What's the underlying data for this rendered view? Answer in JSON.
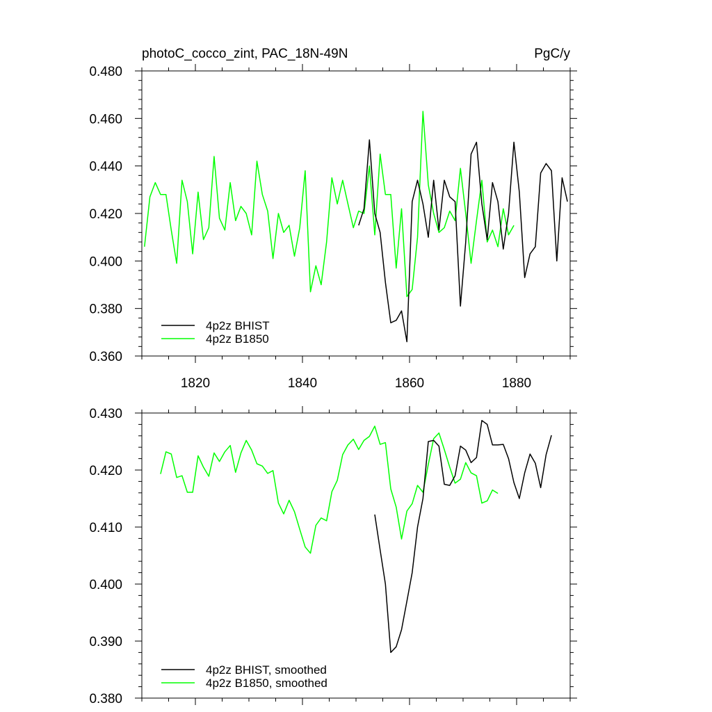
{
  "chart_data": [
    {
      "type": "line",
      "title": "photoC_cocco_zint, PAC_18N-49N",
      "units": "PgC/y",
      "xlabel": "",
      "ylabel": "",
      "xlim": [
        1810,
        1890
      ],
      "ylim": [
        0.36,
        0.48
      ],
      "x_ticks": [
        1820,
        1840,
        1860,
        1880
      ],
      "x_tick_labels": [
        "1820",
        "1840",
        "1860",
        "1880"
      ],
      "y_ticks": [
        0.36,
        0.38,
        0.4,
        0.42,
        0.44,
        0.46,
        0.48
      ],
      "y_tick_labels": [
        "0.360",
        "0.380",
        "0.400",
        "0.420",
        "0.440",
        "0.460",
        "0.480"
      ],
      "legend_position": "bottom-left",
      "series": [
        {
          "name": "4p2z BHIST",
          "color": "#000000",
          "x": [
            1850.5,
            1851.5,
            1852.5,
            1853.5,
            1854.5,
            1855.5,
            1856.5,
            1857.5,
            1858.5,
            1859.5,
            1860.5,
            1861.5,
            1862.5,
            1863.5,
            1864.5,
            1865.5,
            1866.5,
            1867.5,
            1868.5,
            1869.5,
            1870.5,
            1871.5,
            1872.5,
            1873.5,
            1874.5,
            1875.5,
            1876.5,
            1877.5,
            1878.5,
            1879.5,
            1880.5,
            1881.5,
            1882.5,
            1883.5,
            1884.5,
            1885.5,
            1886.5,
            1887.5,
            1888.5,
            1889.5
          ],
          "values": [
            0.415,
            0.422,
            0.451,
            0.42,
            0.412,
            0.391,
            0.374,
            0.375,
            0.379,
            0.366,
            0.425,
            0.434,
            0.424,
            0.41,
            0.434,
            0.413,
            0.434,
            0.427,
            0.425,
            0.381,
            0.408,
            0.445,
            0.45,
            0.424,
            0.409,
            0.433,
            0.425,
            0.405,
            0.42,
            0.45,
            0.429,
            0.393,
            0.403,
            0.406,
            0.437,
            0.441,
            0.438,
            0.4,
            0.435,
            0.425
          ]
        },
        {
          "name": "4p2z B1850",
          "color": "#00ff00",
          "x": [
            1810.5,
            1811.5,
            1812.5,
            1813.5,
            1814.5,
            1815.5,
            1816.5,
            1817.5,
            1818.5,
            1819.5,
            1820.5,
            1821.5,
            1822.5,
            1823.5,
            1824.5,
            1825.5,
            1826.5,
            1827.5,
            1828.5,
            1829.5,
            1830.5,
            1831.5,
            1832.5,
            1833.5,
            1834.5,
            1835.5,
            1836.5,
            1837.5,
            1838.5,
            1839.5,
            1840.5,
            1841.5,
            1842.5,
            1843.5,
            1844.5,
            1845.5,
            1846.5,
            1847.5,
            1848.5,
            1849.5,
            1850.5,
            1851.5,
            1852.5,
            1853.5,
            1854.5,
            1855.5,
            1856.5,
            1857.5,
            1858.5,
            1859.5,
            1860.5,
            1861.5,
            1862.5,
            1863.5,
            1864.5,
            1865.5,
            1866.5,
            1867.5,
            1868.5,
            1869.5,
            1870.5,
            1871.5,
            1872.5,
            1873.5,
            1874.5,
            1875.5,
            1876.5,
            1877.5,
            1878.5,
            1879.5
          ],
          "values": [
            0.406,
            0.427,
            0.433,
            0.428,
            0.428,
            0.413,
            0.399,
            0.434,
            0.425,
            0.403,
            0.429,
            0.409,
            0.414,
            0.444,
            0.418,
            0.413,
            0.433,
            0.417,
            0.423,
            0.42,
            0.411,
            0.442,
            0.428,
            0.421,
            0.401,
            0.42,
            0.412,
            0.415,
            0.402,
            0.414,
            0.438,
            0.387,
            0.398,
            0.39,
            0.408,
            0.435,
            0.424,
            0.434,
            0.424,
            0.414,
            0.421,
            0.42,
            0.44,
            0.411,
            0.445,
            0.428,
            0.428,
            0.397,
            0.422,
            0.385,
            0.388,
            0.41,
            0.463,
            0.432,
            0.42,
            0.412,
            0.414,
            0.421,
            0.417,
            0.439,
            0.42,
            0.399,
            0.417,
            0.434,
            0.408,
            0.413,
            0.406,
            0.422,
            0.411,
            0.415
          ]
        }
      ]
    },
    {
      "type": "line",
      "title": "",
      "xlabel": "",
      "ylabel": "",
      "xlim": [
        1810,
        1890
      ],
      "ylim": [
        0.38,
        0.43
      ],
      "x_ticks": [
        1820,
        1840,
        1860,
        1880
      ],
      "y_ticks": [
        0.38,
        0.39,
        0.4,
        0.41,
        0.42,
        0.43
      ],
      "y_tick_labels": [
        "0.380",
        "0.390",
        "0.400",
        "0.410",
        "0.420",
        "0.430"
      ],
      "legend_position": "bottom-left",
      "series": [
        {
          "name": "4p2z BHIST, smoothed",
          "color": "#000000",
          "x": [
            1853.5,
            1854.5,
            1855.5,
            1856.5,
            1857.5,
            1858.5,
            1859.5,
            1860.5,
            1861.5,
            1862.5,
            1863.5,
            1864.5,
            1865.5,
            1866.5,
            1867.5,
            1868.5,
            1869.5,
            1870.5,
            1871.5,
            1872.5,
            1873.5,
            1874.5,
            1875.5,
            1876.5,
            1877.5,
            1878.5,
            1879.5,
            1880.5,
            1881.5,
            1882.5,
            1883.5,
            1884.5,
            1885.5,
            1886.5
          ],
          "values": [
            0.4122,
            0.406,
            0.4,
            0.388,
            0.389,
            0.392,
            0.397,
            0.402,
            0.41,
            0.415,
            0.425,
            0.4252,
            0.4242,
            0.4175,
            0.4173,
            0.419,
            0.4242,
            0.4235,
            0.4213,
            0.4222,
            0.4287,
            0.428,
            0.4244,
            0.4244,
            0.4245,
            0.422,
            0.4178,
            0.415,
            0.4195,
            0.4228,
            0.4212,
            0.4169,
            0.4227,
            0.4261
          ]
        },
        {
          "name": "4p2z B1850, smoothed",
          "color": "#00ff00",
          "x": [
            1813.5,
            1814.5,
            1815.5,
            1816.5,
            1817.5,
            1818.5,
            1819.5,
            1820.5,
            1821.5,
            1822.5,
            1823.5,
            1824.5,
            1825.5,
            1826.5,
            1827.5,
            1828.5,
            1829.5,
            1830.5,
            1831.5,
            1832.5,
            1833.5,
            1834.5,
            1835.5,
            1836.5,
            1837.5,
            1838.5,
            1839.5,
            1840.5,
            1841.5,
            1842.5,
            1843.5,
            1844.5,
            1845.5,
            1846.5,
            1847.5,
            1848.5,
            1849.5,
            1850.5,
            1851.5,
            1852.5,
            1853.5,
            1854.5,
            1855.5,
            1856.5,
            1857.5,
            1858.5,
            1859.5,
            1860.5,
            1861.5,
            1862.5,
            1863.5,
            1864.5,
            1865.5,
            1866.5,
            1867.5,
            1868.5,
            1869.5,
            1870.5,
            1871.5,
            1872.5,
            1873.5,
            1874.5,
            1875.5,
            1876.5
          ],
          "values": [
            0.4193,
            0.4232,
            0.4228,
            0.4187,
            0.419,
            0.4161,
            0.4161,
            0.4225,
            0.4205,
            0.4189,
            0.423,
            0.4215,
            0.4232,
            0.4243,
            0.4196,
            0.423,
            0.4252,
            0.4235,
            0.4211,
            0.4207,
            0.4194,
            0.4199,
            0.4142,
            0.4123,
            0.4147,
            0.4127,
            0.4096,
            0.4065,
            0.4054,
            0.4103,
            0.4116,
            0.4111,
            0.4162,
            0.4182,
            0.4227,
            0.4244,
            0.4254,
            0.4236,
            0.4252,
            0.4259,
            0.4277,
            0.4245,
            0.4248,
            0.4167,
            0.4135,
            0.4079,
            0.4128,
            0.4141,
            0.4173,
            0.4161,
            0.421,
            0.4255,
            0.4265,
            0.4236,
            0.4205,
            0.4177,
            0.4184,
            0.4213,
            0.4195,
            0.419,
            0.4142,
            0.4146,
            0.4165,
            0.4159
          ]
        }
      ]
    }
  ]
}
